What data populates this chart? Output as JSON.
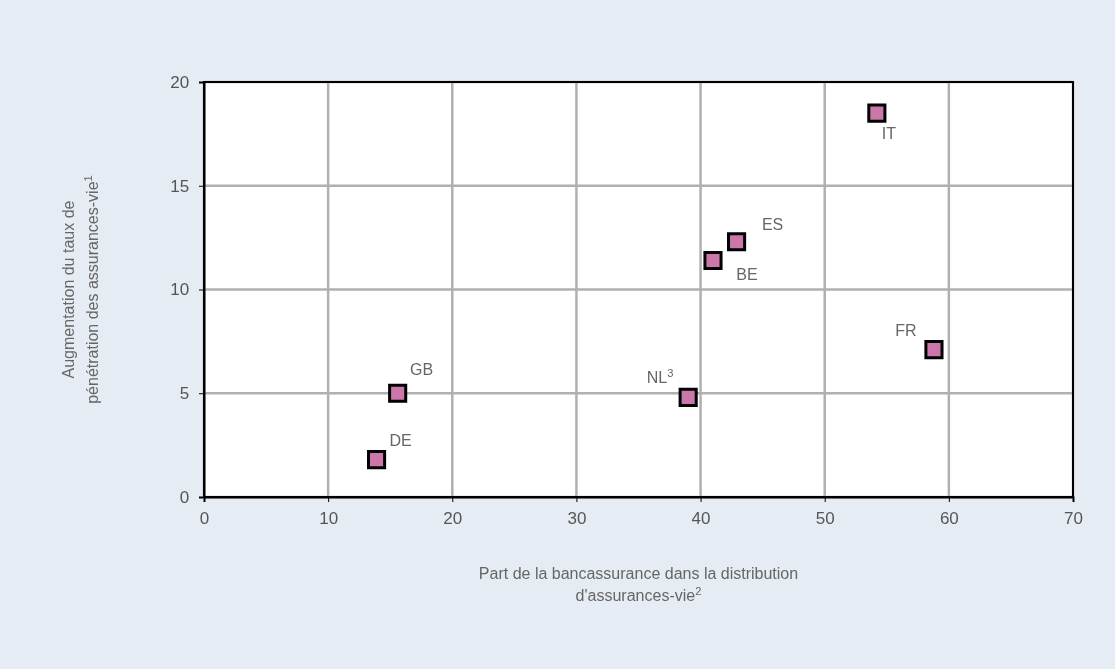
{
  "chart_data": {
    "type": "scatter",
    "xlabel": "Part de la bancassurance dans la distribution d'assurances-vie$^{2}$",
    "ylabel": "Augmentation du taux de pénétration des assurances-vie$^{1}$",
    "xlim": [
      0,
      70
    ],
    "xticks": [
      0,
      10,
      20,
      30,
      40,
      50,
      60,
      70
    ],
    "ylim": [
      0,
      20
    ],
    "yticks": [
      0,
      5,
      10,
      15,
      20
    ],
    "grid": true,
    "marker": "square",
    "series": [
      {
        "name": "DE",
        "color": "#cc77aa",
        "x": [
          13.9
        ],
        "values": [
          1.8
        ]
      },
      {
        "name": "GB",
        "color": "#cc77aa",
        "x": [
          15.6
        ],
        "values": [
          5.0
        ]
      },
      {
        "name": "NL$^{3}$",
        "color": "#cc77aa",
        "x": [
          39.0
        ],
        "values": [
          4.8
        ]
      },
      {
        "name": "BE",
        "color": "#cc77aa",
        "x": [
          41.0
        ],
        "values": [
          11.4
        ]
      },
      {
        "name": "ES",
        "color": "#cc77aa",
        "x": [
          42.9
        ],
        "values": [
          12.3
        ]
      },
      {
        "name": "IT",
        "color": "#cc77aa",
        "x": [
          54.2
        ],
        "values": [
          18.5
        ]
      },
      {
        "name": "FR",
        "color": "#cc77aa",
        "x": [
          58.8
        ],
        "values": [
          7.1
        ]
      }
    ]
  }
}
